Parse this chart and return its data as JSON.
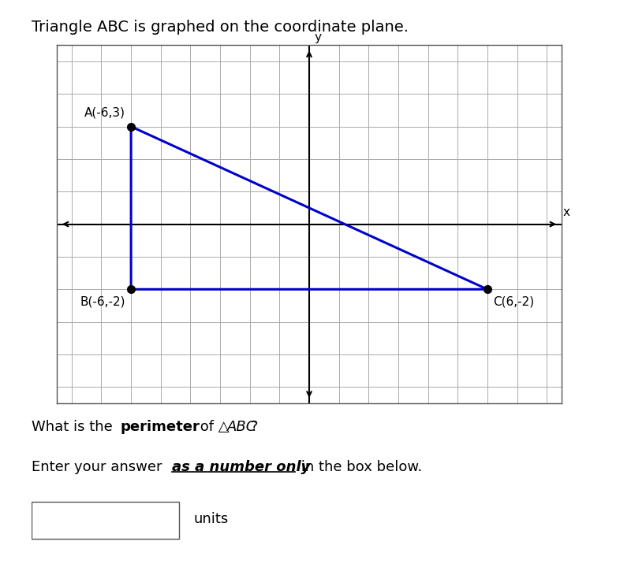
{
  "title": "Triangle ABC is graphed on the coordinate plane.",
  "points": {
    "A": [
      -6,
      3
    ],
    "B": [
      -6,
      -2
    ],
    "C": [
      6,
      -2
    ]
  },
  "point_labels": {
    "A": "A(-6,3)",
    "B": "B(-6,-2)",
    "C": "C(6,-2)"
  },
  "triangle_color": "#0000cc",
  "point_color": "#000000",
  "grid_color": "#aaaaaa",
  "axis_color": "#000000",
  "background_color": "#ffffff",
  "xlim": [
    -8.5,
    8.5
  ],
  "ylim": [
    -5.5,
    5.5
  ],
  "font_size_title": 14,
  "font_size_labels": 11,
  "font_size_point_labels": 11,
  "font_size_question": 13,
  "font_size_instruction": 13,
  "triangle_linewidth": 2.2,
  "point_size": 7,
  "axis_linewidth": 1.5
}
